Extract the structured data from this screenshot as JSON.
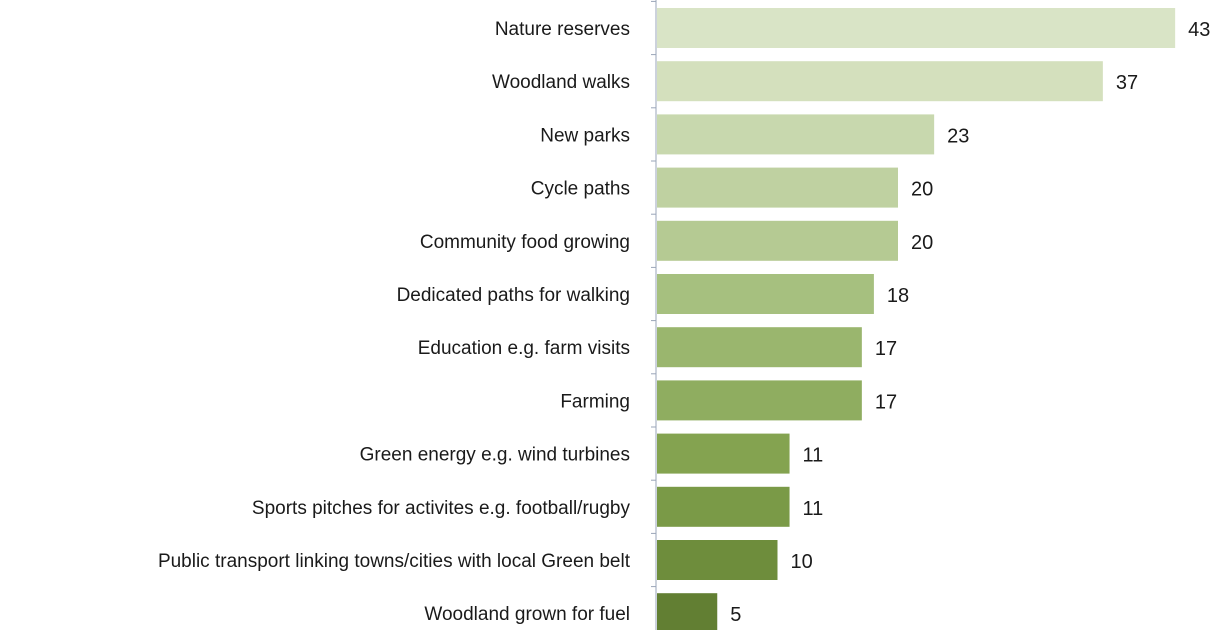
{
  "chart_data": {
    "type": "bar",
    "orientation": "horizontal",
    "title": "",
    "xlabel": "",
    "ylabel": "",
    "categories": [
      "Nature reserves",
      "Woodland walks",
      "New parks",
      "Cycle paths",
      "Community food growing",
      "Dedicated paths for walking",
      "Education e.g. farm visits",
      "Farming",
      "Green energy e.g. wind turbines",
      "Sports pitches for activites e.g. football/rugby",
      "Public transport linking towns/cities with local Green belt",
      "Woodland grown for fuel"
    ],
    "values": [
      43,
      37,
      23,
      20,
      20,
      18,
      17,
      17,
      11,
      11,
      10,
      5
    ],
    "colors": [
      "#d9e4c6",
      "#d4e0bd",
      "#c8d8ae",
      "#bfd1a1",
      "#b5ca93",
      "#a6c07f",
      "#9ab66e",
      "#8fad60",
      "#84a350",
      "#7a9a47",
      "#6e8d3c",
      "#627f33"
    ],
    "xlim": [
      0,
      43
    ],
    "grid": false,
    "legend": "none"
  }
}
